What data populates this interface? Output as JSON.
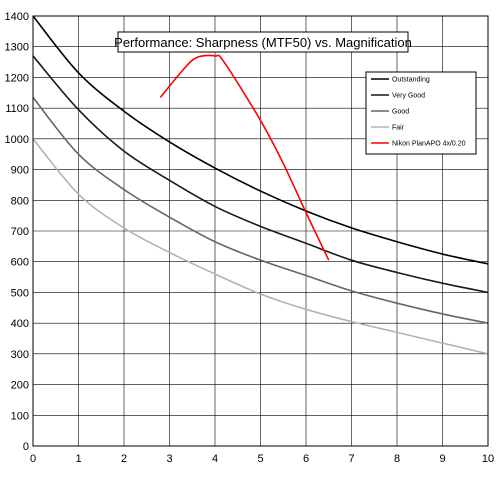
{
  "chart_data": {
    "type": "line",
    "title": "Performance: Sharpness (MTF50) vs. Magnification",
    "xlabel": "",
    "ylabel": "",
    "xlim": [
      0,
      10
    ],
    "ylim": [
      0,
      1400
    ],
    "x_ticks": [
      0,
      1,
      2,
      3,
      4,
      5,
      6,
      7,
      8,
      9,
      10
    ],
    "y_ticks": [
      0,
      100,
      200,
      300,
      400,
      500,
      600,
      700,
      800,
      900,
      1000,
      1100,
      1200,
      1300,
      1400
    ],
    "grid": true,
    "legend_position": "top-right",
    "series": [
      {
        "name": "Outstanding",
        "color": "#000000",
        "x": [
          0,
          1,
          2,
          3,
          4,
          5,
          6,
          7,
          8,
          9,
          10
        ],
        "values": [
          1400,
          1215,
          1090,
          990,
          905,
          830,
          765,
          710,
          665,
          625,
          593
        ]
      },
      {
        "name": "Very Good",
        "color": "#1a1a1a",
        "x": [
          0,
          1,
          2,
          3,
          4,
          5,
          6,
          7,
          8,
          9,
          10
        ],
        "values": [
          1270,
          1095,
          960,
          865,
          780,
          715,
          660,
          605,
          565,
          530,
          500
        ]
      },
      {
        "name": "Good",
        "color": "#666666",
        "x": [
          0,
          1,
          2,
          3,
          4,
          5,
          6,
          7,
          8,
          9,
          10
        ],
        "values": [
          1135,
          950,
          835,
          745,
          665,
          605,
          555,
          505,
          465,
          430,
          400
        ]
      },
      {
        "name": "Fair",
        "color": "#b3b3b3",
        "x": [
          0,
          1,
          2,
          3,
          4,
          5,
          6,
          7,
          8,
          9,
          10
        ],
        "values": [
          1000,
          820,
          710,
          630,
          560,
          495,
          445,
          405,
          370,
          335,
          300
        ]
      },
      {
        "name": "Nikon PlanAPO 4x/0.20",
        "color": "#ff0000",
        "x": [
          2.8,
          3.3,
          3.6,
          4.0,
          4.2,
          5.0,
          5.5,
          6.0,
          6.5
        ],
        "values": [
          1135,
          1225,
          1265,
          1270,
          1250,
          1060,
          920,
          760,
          605
        ]
      }
    ]
  }
}
